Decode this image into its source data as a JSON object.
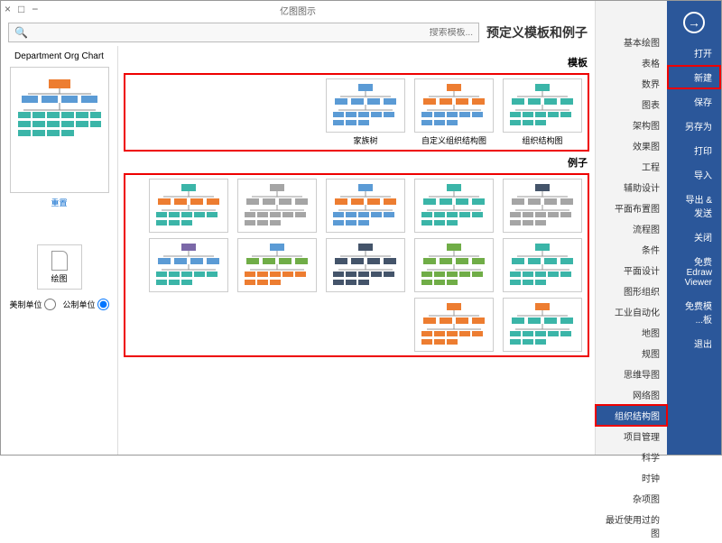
{
  "window": {
    "title": "亿图图示",
    "close": "×",
    "max": "□",
    "min": "−"
  },
  "leftNav": {
    "items": [
      {
        "label": "打开"
      },
      {
        "label": "新建",
        "highlighted": true
      },
      {
        "label": "保存"
      },
      {
        "label": "另存为"
      },
      {
        "label": "打印"
      },
      {
        "label": "导入"
      },
      {
        "label": "导出 & 发送"
      },
      {
        "label": "关闭"
      },
      {
        "label": "免费 Edraw Viewer"
      },
      {
        "label": "免费模板..."
      },
      {
        "label": "退出"
      }
    ]
  },
  "categories": {
    "items": [
      "基本绘图",
      "表格",
      "数界",
      "图表",
      "架构图",
      "效果图",
      "工程",
      "辅助设计",
      "平面布置图",
      "流程图",
      "条件",
      "平面设计",
      "图形组织",
      "工业自动化",
      "地图",
      "规图",
      "思维导图",
      "网络图",
      "组织结构图",
      "项目管理",
      "科学",
      "时钟",
      "杂项图",
      "最近使用过的图"
    ],
    "selectedIndex": 18
  },
  "header": {
    "title": "预定义模板和例子",
    "searchIcon": "🔍",
    "searchPlaceholder": "...搜索模板"
  },
  "rightPanel": {
    "previewTitle": "Department Org Chart",
    "resetLink": "重置",
    "blankLabel": "绘图",
    "radio1": "公制单位",
    "radio2": "美制单位"
  },
  "gallery": {
    "section1": {
      "title": "模板",
      "items": [
        {
          "label": "组织结构图"
        },
        {
          "label": "自定义组织结构图"
        },
        {
          "label": "家族树"
        }
      ]
    },
    "section2": {
      "title": "例子",
      "count": 12
    }
  },
  "colors": {
    "brand": "#2b579a",
    "highlight": "#e00",
    "teal": "#3bb5a8",
    "blue": "#5b9bd5",
    "green": "#70ad47",
    "orange": "#ed7d31",
    "gray": "#a5a5a5",
    "purple": "#7b68a8",
    "navy": "#44546a"
  }
}
